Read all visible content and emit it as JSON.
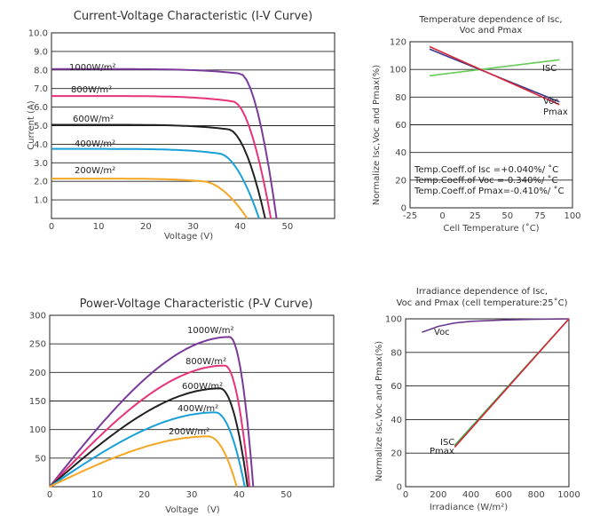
{
  "chart_data": [
    {
      "id": "iv",
      "type": "line",
      "title": "Current-Voltage Characteristic (I-V Curve)",
      "xlabel": "Voltage (V)",
      "ylabel": "Current (A)",
      "xlim": [
        0,
        60
      ],
      "ylim": [
        0,
        10
      ],
      "xticks": [
        "0",
        "10",
        "20",
        "30",
        "40",
        "50"
      ],
      "yticks": [
        "1.0",
        "2.0",
        "3.0",
        "4.0",
        "5.0",
        "6.0",
        "7.0",
        "8.0",
        "9.0",
        "10.0"
      ],
      "grid": true,
      "series": [
        {
          "name": "1000W/m²",
          "color": "#7a3a9a",
          "isc": 8.05,
          "voc": 47.7,
          "knee_v": 40.0,
          "knee_i": 7.8
        },
        {
          "name": "800W/m²",
          "color": "#e8337a",
          "isc": 6.6,
          "voc": 46.5,
          "knee_v": 38.5,
          "knee_i": 6.3
        },
        {
          "name": "600W/m²",
          "color": "#222222",
          "isc": 5.05,
          "voc": 45.3,
          "knee_v": 37.5,
          "knee_i": 4.8
        },
        {
          "name": "400W/m²",
          "color": "#19a0d8",
          "isc": 3.75,
          "voc": 44.0,
          "knee_v": 35.5,
          "knee_i": 3.5
        },
        {
          "name": "200W/m²",
          "color": "#f5a623",
          "isc": 2.15,
          "voc": 41.5,
          "knee_v": 32.0,
          "knee_i": 2.0
        }
      ],
      "labels": [
        "1000W/m²",
        "800W/m²",
        "600W/m²",
        "400W/m²",
        "200W/m²"
      ]
    },
    {
      "id": "temp",
      "type": "line",
      "title": "Temperature dependence of Isc, Voc and Pmax",
      "xlabel": "Cell Temperature (˚C)",
      "ylabel": "Normalize Isc,Voc and Pmax(%)",
      "xlim": [
        -25,
        100
      ],
      "ylim": [
        0,
        120
      ],
      "xticks": [
        "-25",
        "0",
        "25",
        "50",
        "75",
        "100"
      ],
      "yticks": [
        "0",
        "20",
        "40",
        "60",
        "80",
        "100",
        "120"
      ],
      "grid": true,
      "series": [
        {
          "name": "Isc",
          "color": "#66cc55",
          "x": [
            -10,
            90
          ],
          "y": [
            95.4,
            107.0
          ]
        },
        {
          "name": "Voc",
          "color": "#3a3a8a",
          "x": [
            -10,
            90
          ],
          "y": [
            114.7,
            76.5
          ]
        },
        {
          "name": "Pmax",
          "color": "#d8263a",
          "x": [
            -10,
            90
          ],
          "y": [
            116.5,
            74.5
          ]
        }
      ],
      "annotations": [
        "Temp.Coeff.of Isc =+0.040%/ ˚C",
        "Temp.Coeff.of Voc =-0.340%/ ˚C",
        "Temp.Coeff.of Pmax=-0.410%/ ˚C"
      ],
      "series_labels": [
        "ISC",
        "Voc",
        "Pmax"
      ]
    },
    {
      "id": "pv",
      "type": "line",
      "title": "Power-Voltage Characteristic (P-V Curve)",
      "xlabel": "Voltage （V)",
      "xlim": [
        0,
        60
      ],
      "ylim": [
        0,
        300
      ],
      "xticks": [
        "0",
        "10",
        "20",
        "30",
        "40",
        "50"
      ],
      "yticks": [
        "50",
        "100",
        "150",
        "200",
        "250",
        "300"
      ],
      "grid": true,
      "series": [
        {
          "name": "1000W/m²",
          "color": "#7a3a9a",
          "vmp": 38.0,
          "pmp": 262,
          "voc": 43.0
        },
        {
          "name": "800W/m²",
          "color": "#e8337a",
          "vmp": 37.0,
          "pmp": 212,
          "voc": 42.2
        },
        {
          "name": "600W/m²",
          "color": "#222222",
          "vmp": 36.0,
          "pmp": 172,
          "voc": 41.8
        },
        {
          "name": "400W/m²",
          "color": "#19a0d8",
          "vmp": 35.0,
          "pmp": 130,
          "voc": 41.2
        },
        {
          "name": "200W/m²",
          "color": "#f5a623",
          "vmp": 33.5,
          "pmp": 88,
          "voc": 39.5
        }
      ],
      "labels": [
        "1000W/m²",
        "800W/m²",
        "600W/m²",
        "400W/m²",
        "200W/m²"
      ]
    },
    {
      "id": "irr",
      "type": "line",
      "title": "Irradiance dependence of Isc, Voc and Pmax (cell temperature:25˚C)",
      "title_lines": [
        "Irradiance dependence of Isc,",
        "Voc and Pmax (cell temperature:25˚C)"
      ],
      "xlabel": "Irradiance (W/m²)",
      "ylabel": "Normalize Isc,Voc and Pmax(%)",
      "xlim": [
        0,
        1000
      ],
      "ylim": [
        0,
        100
      ],
      "xticks": [
        "0",
        "200",
        "400",
        "600",
        "800",
        "1000"
      ],
      "yticks": [
        "0",
        "20",
        "40",
        "60",
        "80",
        "100"
      ],
      "grid": true,
      "series": [
        {
          "name": "Voc",
          "color": "#6a3a8a",
          "x": [
            100,
            200,
            300,
            400,
            600,
            800,
            1000
          ],
          "y": [
            92,
            95.5,
            97.5,
            98.5,
            99.3,
            99.8,
            100
          ]
        },
        {
          "name": "Isc",
          "color": "#33aa44",
          "x": [
            300,
            1000
          ],
          "y": [
            24.5,
            100
          ]
        },
        {
          "name": "Pmax",
          "color": "#d8263a",
          "x": [
            300,
            1000
          ],
          "y": [
            23.5,
            100
          ]
        }
      ],
      "series_labels": [
        "Voc",
        "ISC",
        "Pmax"
      ]
    }
  ]
}
